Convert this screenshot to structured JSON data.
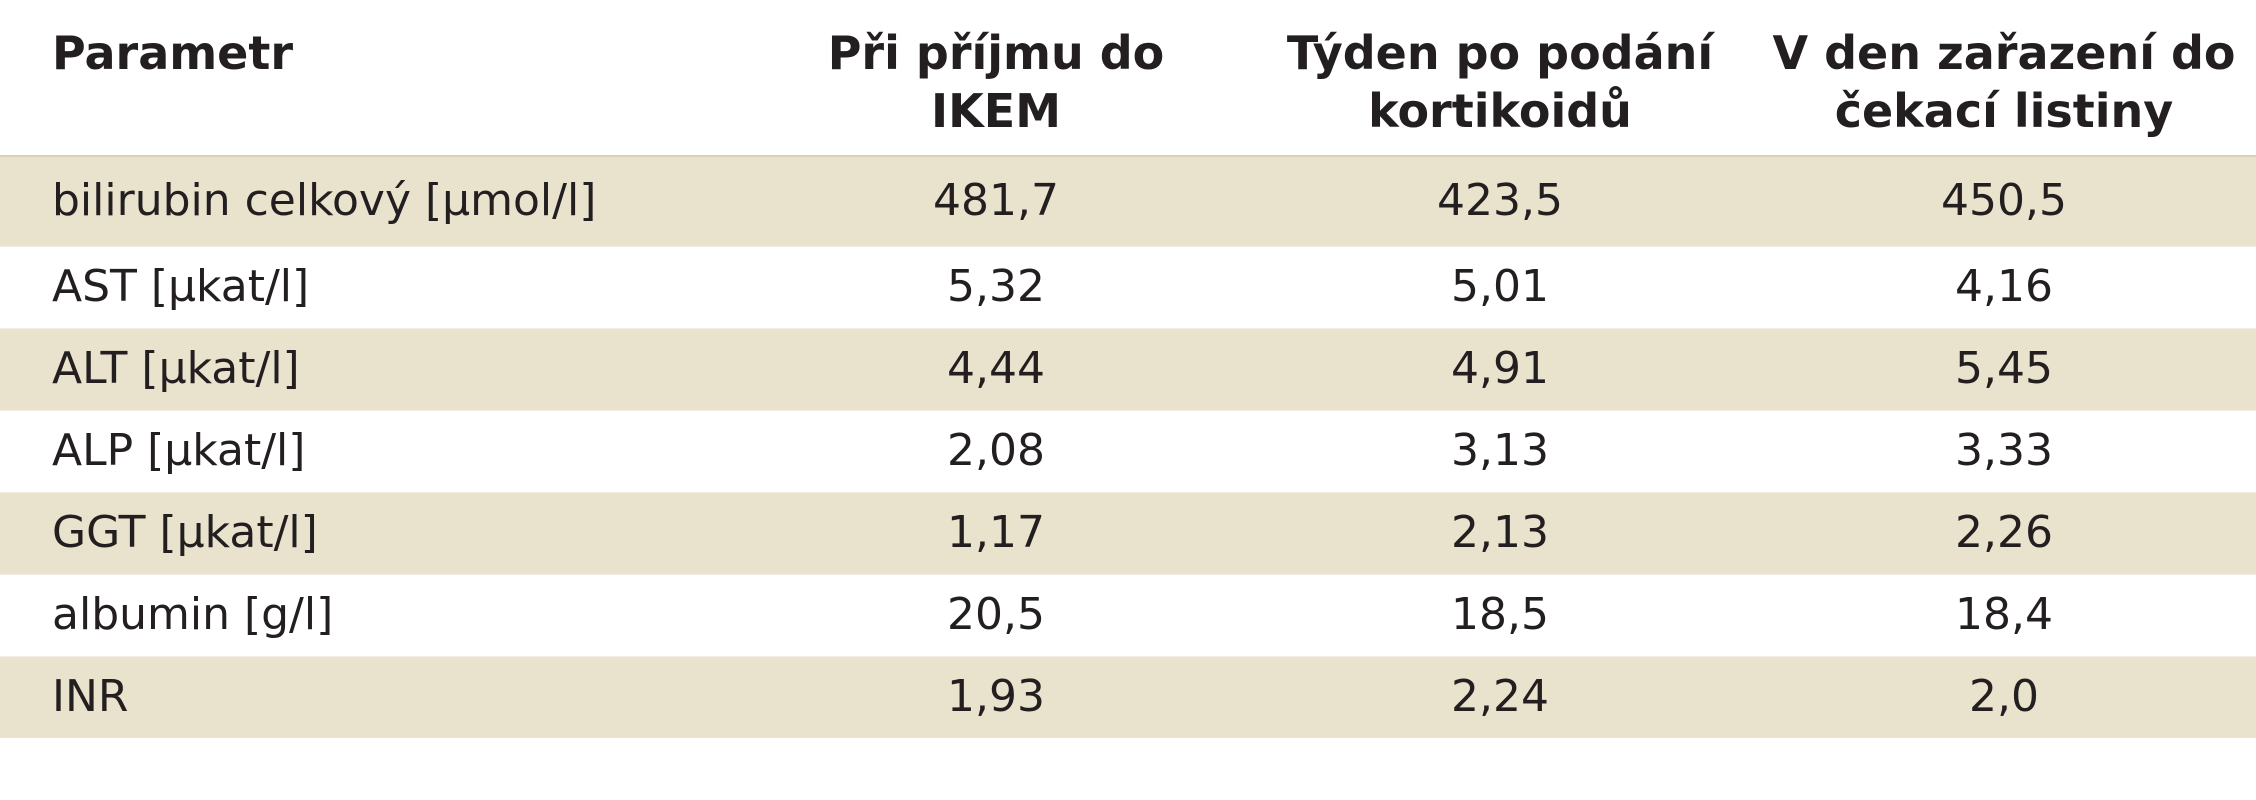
{
  "table": {
    "headers": [
      {
        "lines": [
          "Parametr",
          ""
        ]
      },
      {
        "lines": [
          "Při příjmu do",
          "IKEM"
        ]
      },
      {
        "lines": [
          "Týden po podání",
          "kortikoidů"
        ]
      },
      {
        "lines": [
          "V den zařazení do",
          "čekací listiny"
        ]
      }
    ],
    "rows": [
      {
        "param": "bilirubin celkový [µmol/l]",
        "values": [
          "481,7",
          "423,5",
          "450,5"
        ]
      },
      {
        "param": "AST [µkat/l]",
        "values": [
          "5,32",
          "5,01",
          "4,16"
        ]
      },
      {
        "param": "ALT [µkat/l]",
        "values": [
          "4,44",
          "4,91",
          "5,45"
        ]
      },
      {
        "param": "ALP [µkat/l]",
        "values": [
          "2,08",
          "3,13",
          "3,33"
        ]
      },
      {
        "param": "GGT [µkat/l]",
        "values": [
          "1,17",
          "2,13",
          "2,26"
        ]
      },
      {
        "param": "albumin [g/l]",
        "values": [
          "20,5",
          "18,5",
          "18,4"
        ]
      },
      {
        "param": "INR",
        "values": [
          "1,93",
          "2,24",
          "2,0"
        ]
      }
    ]
  },
  "colors": {
    "band": "#e9e2cd",
    "text": "#231f20"
  }
}
